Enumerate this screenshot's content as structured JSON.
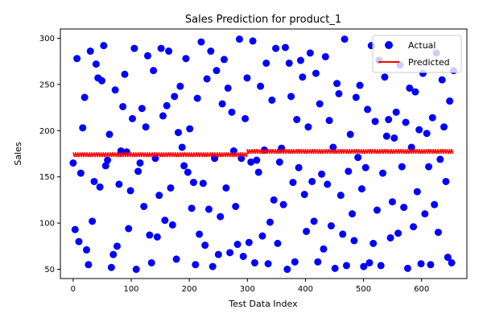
{
  "chart_data": {
    "type": "scatter",
    "title": "Sales Prediction for product_1",
    "xlabel": "Test Data Index",
    "ylabel": "Sales",
    "xlim": [
      -22,
      678
    ],
    "ylim": [
      40,
      310
    ],
    "xticks": [
      0,
      100,
      200,
      300,
      400,
      500,
      600
    ],
    "yticks": [
      50,
      100,
      150,
      200,
      250,
      300
    ],
    "grid": false,
    "legend_position": "top-right",
    "actual": {
      "name": "Actual",
      "color": "#0000ff",
      "x_start": 0,
      "x_end": 655,
      "values": [
        165,
        93,
        278,
        80,
        154,
        203,
        236,
        71,
        55,
        286,
        102,
        145,
        272,
        257,
        139,
        254,
        292,
        162,
        168,
        196,
        52,
        66,
        244,
        75,
        142,
        178,
        226,
        261,
        177,
        94,
        135,
        213,
        289,
        50,
        156,
        165,
        224,
        118,
        204,
        281,
        87,
        57,
        265,
        170,
        85,
        130,
        289,
        216,
        103,
        227,
        286,
        138,
        98,
        237,
        61,
        198,
        248,
        182,
        162,
        278,
        155,
        202,
        116,
        144,
        55,
        235,
        88,
        296,
        143,
        76,
        256,
        115,
        286,
        53,
        170,
        265,
        66,
        107,
        229,
        277,
        138,
        246,
        68,
        220,
        178,
        118,
        77,
        299,
        170,
        64,
        213,
        257,
        79,
        166,
        297,
        57,
        168,
        155,
        248,
        86,
        179,
        273,
        56,
        101,
        233,
        125,
        289,
        78,
        166,
        181,
        120,
        290,
        50,
        273,
        237,
        144,
        58,
        212,
        160,
        276,
        258,
        131,
        91,
        204,
        284,
        145,
        102,
        262,
        58,
        229,
        153,
        72,
        280,
        142,
        211,
        97,
        182,
        51,
        251,
        240,
        130,
        88,
        299,
        54,
        156,
        196,
        110,
        81,
        236,
        171,
        249,
        137,
        53,
        160,
        223,
        57,
        292,
        78,
        210,
        114,
        276,
        54,
        154,
        258,
        194,
        212,
        84,
        123,
        192,
        220,
        89,
        271,
        161,
        117,
        209,
        51,
        246,
        182,
        96,
        242,
        134,
        201,
        56,
        262,
        110,
        197,
        161,
        55,
        214,
        120,
        284,
        90,
        169,
        255,
        204,
        145,
        63,
        232,
        57,
        265
      ]
    },
    "predicted": {
      "name": "Predicted",
      "color": "#ff0000",
      "x_start": 0,
      "x_end": 655,
      "segments": [
        {
          "x0": 0,
          "x1": 300,
          "base": 174,
          "amp": 2.5
        },
        {
          "x0": 300,
          "x1": 655,
          "base": 177.5,
          "amp": 2.5
        }
      ]
    }
  }
}
